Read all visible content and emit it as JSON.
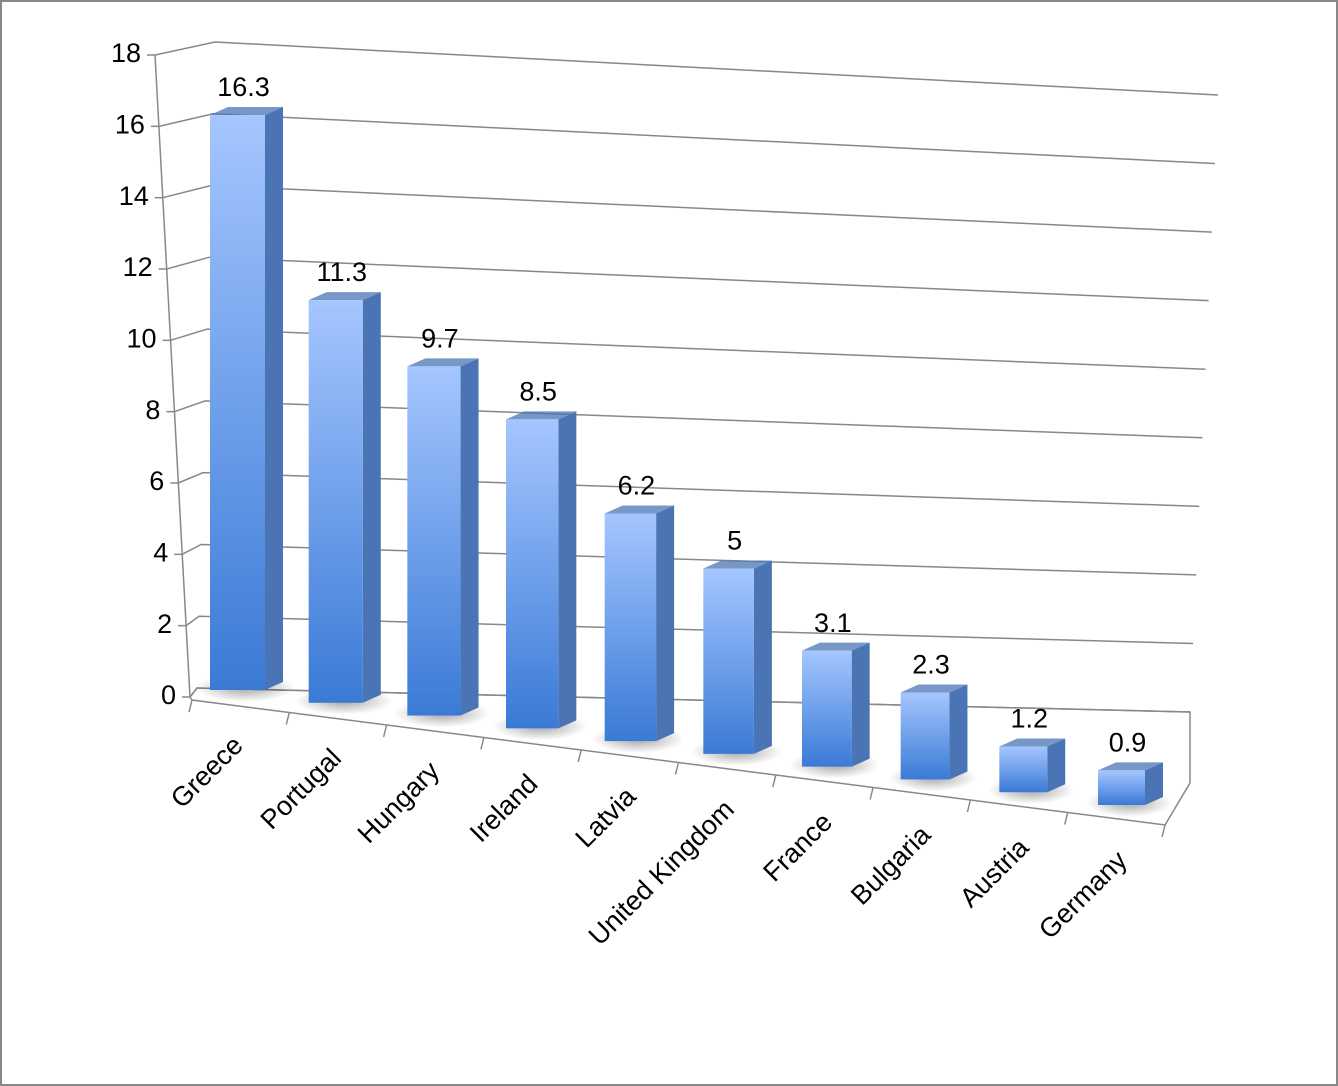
{
  "chart_data": {
    "type": "bar3d",
    "categories": [
      "Greece",
      "Portugal",
      "Hungary",
      "Ireland",
      "Latvia",
      "United Kingdom",
      "France",
      "Bulgaria",
      "Austria",
      "Germany"
    ],
    "values": [
      16.3,
      11.3,
      9.7,
      8.5,
      6.2,
      5,
      3.1,
      2.3,
      1.2,
      0.9
    ],
    "color": "#4a74b4",
    "ylim": [
      0,
      18
    ],
    "yticks": [
      0,
      2,
      4,
      6,
      8,
      10,
      12,
      14,
      16,
      18
    ],
    "grid": true
  }
}
